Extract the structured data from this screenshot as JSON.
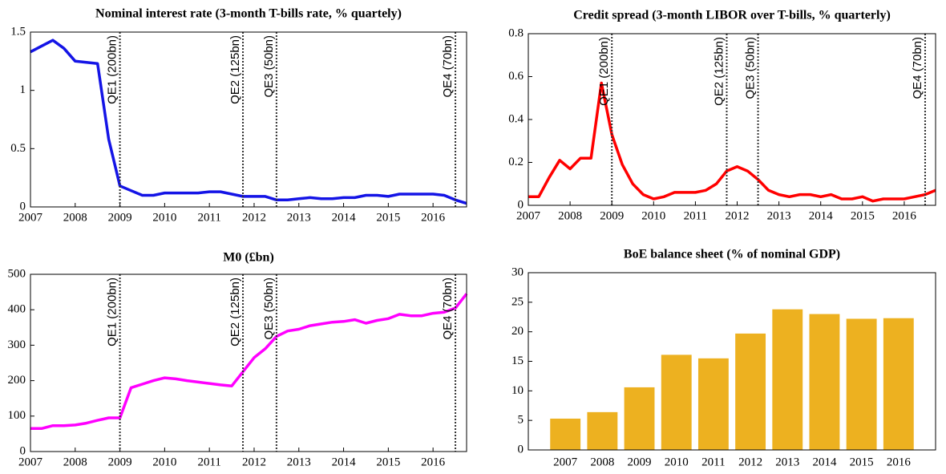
{
  "chart_data": [
    {
      "type": "line",
      "title": "Nominal interest rate (3-month T-bills rate, % quartely)",
      "x": [
        2007,
        2007.25,
        2007.5,
        2007.75,
        2008,
        2008.25,
        2008.5,
        2008.75,
        2009,
        2009.25,
        2009.5,
        2009.75,
        2010,
        2010.25,
        2010.5,
        2010.75,
        2011,
        2011.25,
        2011.5,
        2011.75,
        2012,
        2012.25,
        2012.5,
        2012.75,
        2013,
        2013.25,
        2013.5,
        2013.75,
        2014,
        2014.25,
        2014.5,
        2014.75,
        2015,
        2015.25,
        2015.5,
        2015.75,
        2016,
        2016.25,
        2016.5,
        2016.75
      ],
      "values": [
        1.33,
        1.38,
        1.43,
        1.36,
        1.25,
        1.24,
        1.23,
        0.58,
        0.18,
        0.14,
        0.1,
        0.1,
        0.12,
        0.12,
        0.12,
        0.12,
        0.13,
        0.13,
        0.11,
        0.09,
        0.09,
        0.09,
        0.06,
        0.06,
        0.07,
        0.08,
        0.07,
        0.07,
        0.08,
        0.08,
        0.1,
        0.1,
        0.09,
        0.11,
        0.11,
        0.11,
        0.11,
        0.1,
        0.06,
        0.03
      ],
      "color": "#1414e6",
      "xlim": [
        2007,
        2016.75
      ],
      "xticks": [
        2007,
        2008,
        2009,
        2010,
        2011,
        2012,
        2013,
        2014,
        2015,
        2016
      ],
      "ylim": [
        0,
        1.5
      ],
      "yticks": [
        0,
        0.5,
        1,
        1.5
      ],
      "events": [
        {
          "x": 2009,
          "label": "QE1 (200bn)"
        },
        {
          "x": 2011.75,
          "label": "QE2 (125bn)"
        },
        {
          "x": 2012.5,
          "label": "QE3 (50bn)"
        },
        {
          "x": 2016.5,
          "label": "QE4 (70bn)"
        }
      ]
    },
    {
      "type": "line",
      "title": "Credit spread (3-month LIBOR over T-bills, % quarterly)",
      "x": [
        2007,
        2007.25,
        2007.5,
        2007.75,
        2008,
        2008.25,
        2008.5,
        2008.75,
        2009,
        2009.25,
        2009.5,
        2009.75,
        2010,
        2010.25,
        2010.5,
        2010.75,
        2011,
        2011.25,
        2011.5,
        2011.75,
        2012,
        2012.25,
        2012.5,
        2012.75,
        2013,
        2013.25,
        2013.5,
        2013.75,
        2014,
        2014.25,
        2014.5,
        2014.75,
        2015,
        2015.25,
        2015.5,
        2015.75,
        2016,
        2016.25,
        2016.5,
        2016.75
      ],
      "values": [
        0.04,
        0.04,
        0.13,
        0.21,
        0.17,
        0.22,
        0.22,
        0.57,
        0.33,
        0.19,
        0.1,
        0.05,
        0.03,
        0.04,
        0.06,
        0.06,
        0.06,
        0.07,
        0.1,
        0.16,
        0.18,
        0.16,
        0.12,
        0.07,
        0.05,
        0.04,
        0.05,
        0.05,
        0.04,
        0.05,
        0.03,
        0.03,
        0.04,
        0.02,
        0.03,
        0.03,
        0.03,
        0.04,
        0.05,
        0.07
      ],
      "color": "#ff0000",
      "xlim": [
        2007,
        2016.75
      ],
      "xticks": [
        2007,
        2008,
        2009,
        2010,
        2011,
        2012,
        2013,
        2014,
        2015,
        2016
      ],
      "ylim": [
        0,
        0.8
      ],
      "yticks": [
        0,
        0.2,
        0.4,
        0.6,
        0.8
      ],
      "events": [
        {
          "x": 2009,
          "label": "QE1 (200bn)"
        },
        {
          "x": 2011.75,
          "label": "QE2 (125bn)"
        },
        {
          "x": 2012.5,
          "label": "QE3 (50bn)"
        },
        {
          "x": 2016.5,
          "label": "QE4 (70bn)"
        }
      ]
    },
    {
      "type": "line",
      "title": "M0 (£bn)",
      "x": [
        2007,
        2007.25,
        2007.5,
        2007.75,
        2008,
        2008.25,
        2008.5,
        2008.75,
        2009,
        2009.25,
        2009.5,
        2009.75,
        2010,
        2010.25,
        2010.5,
        2010.75,
        2011,
        2011.25,
        2011.5,
        2011.75,
        2012,
        2012.25,
        2012.5,
        2012.75,
        2013,
        2013.25,
        2013.5,
        2013.75,
        2014,
        2014.25,
        2014.5,
        2014.75,
        2015,
        2015.25,
        2015.5,
        2015.75,
        2016,
        2016.25,
        2016.5,
        2016.75
      ],
      "values": [
        65,
        65,
        73,
        73,
        75,
        80,
        88,
        95,
        95,
        180,
        190,
        200,
        208,
        205,
        200,
        196,
        192,
        188,
        185,
        225,
        265,
        290,
        325,
        340,
        345,
        355,
        360,
        365,
        367,
        372,
        362,
        370,
        375,
        387,
        383,
        383,
        390,
        393,
        405,
        445
      ],
      "color": "#ff00ff",
      "xlim": [
        2007,
        2016.75
      ],
      "xticks": [
        2007,
        2008,
        2009,
        2010,
        2011,
        2012,
        2013,
        2014,
        2015,
        2016
      ],
      "ylim": [
        0,
        500
      ],
      "yticks": [
        0,
        100,
        200,
        300,
        400,
        500
      ],
      "events": [
        {
          "x": 2009,
          "label": "QE1 (200bn)"
        },
        {
          "x": 2011.75,
          "label": "QE2 (125bn)"
        },
        {
          "x": 2012.5,
          "label": "QE3 (50bn)"
        },
        {
          "x": 2016.5,
          "label": "QE4 (70bn)"
        }
      ]
    },
    {
      "type": "bar",
      "title": "BoE balance sheet (% of nominal GDP)",
      "categories": [
        "2007",
        "2008",
        "2009",
        "2010",
        "2011",
        "2012",
        "2013",
        "2014",
        "2015",
        "2016"
      ],
      "values": [
        5.3,
        6.4,
        10.6,
        16.1,
        15.5,
        19.7,
        23.8,
        23.0,
        22.2,
        22.3
      ],
      "color": "#edb120",
      "ylim": [
        0,
        30
      ],
      "yticks": [
        0,
        5,
        10,
        15,
        20,
        25,
        30
      ]
    }
  ]
}
